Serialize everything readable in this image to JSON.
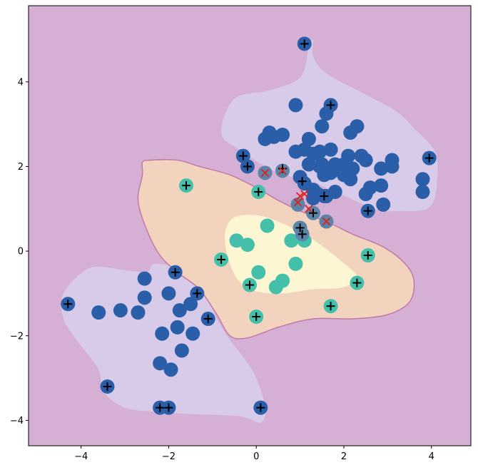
{
  "chart_data": {
    "type": "scatter",
    "title": "",
    "xlabel": "",
    "ylabel": "",
    "xlim": [
      -5.2,
      4.9
    ],
    "ylim": [
      -4.6,
      5.8
    ],
    "grid": false,
    "xticks": [
      -4,
      -2,
      0,
      2,
      4
    ],
    "yticks": [
      -4,
      -2,
      0,
      2,
      4
    ],
    "xtick_labels": [
      "−4",
      "−2",
      "0",
      "2",
      "4"
    ],
    "ytick_labels": [
      "−4",
      "−2",
      "0",
      "2",
      "4"
    ],
    "colors": {
      "background_region": "#d5b0d4",
      "region_level_1": "#d8cbe9",
      "region_level_2": "#f2d3be",
      "region_level_3": "#fdf6d2",
      "region_edge": "#c07aa6",
      "class_0_points": "#2a5ea8",
      "class_1_points": "#44c0aa",
      "misclassified_points": "#5a85a8",
      "support_marker": "#000000",
      "error_marker": "#e0201c"
    },
    "decision_regions": [
      {
        "level": 1,
        "polygon": [
          [
            -0.8,
            2.8
          ],
          [
            -0.5,
            3.6
          ],
          [
            0.3,
            3.8
          ],
          [
            1,
            4.1
          ],
          [
            1.2,
            4.8
          ],
          [
            1.3,
            5.0
          ],
          [
            1.3,
            4.6
          ],
          [
            1.6,
            4.2
          ],
          [
            2.5,
            3.7
          ],
          [
            3.2,
            3.3
          ],
          [
            3.6,
            2.9
          ],
          [
            4.1,
            2.3
          ],
          [
            4.1,
            1.4
          ],
          [
            3.9,
            1.0
          ],
          [
            3.3,
            0.95
          ],
          [
            2.7,
            1.0
          ],
          [
            1.6,
            1.5
          ],
          [
            1.0,
            1.7
          ],
          [
            0.4,
            1.9
          ],
          [
            -0.4,
            2.4
          ]
        ]
      },
      {
        "level": 1,
        "polygon": [
          [
            -4.4,
            -1.0
          ],
          [
            -3.8,
            -0.4
          ],
          [
            -3.0,
            -0.45
          ],
          [
            -2.5,
            -0.5
          ],
          [
            -2.3,
            -0.3
          ],
          [
            -1.6,
            -0.5
          ],
          [
            -1.1,
            -1.2
          ],
          [
            -0.9,
            -1.6
          ],
          [
            -0.6,
            -2.1
          ],
          [
            -0.3,
            -2.5
          ],
          [
            0.0,
            -3.0
          ],
          [
            0.2,
            -3.7
          ],
          [
            0.1,
            -4.05
          ],
          [
            -0.4,
            -3.9
          ],
          [
            -1.5,
            -3.85
          ],
          [
            -2.2,
            -3.8
          ],
          [
            -3.0,
            -3.7
          ],
          [
            -3.5,
            -3.3
          ],
          [
            -3.6,
            -2.8
          ],
          [
            -4.1,
            -2.1
          ],
          [
            -4.4,
            -1.6
          ]
        ]
      },
      {
        "level": 2,
        "polygon": [
          [
            -2.6,
            2.1
          ],
          [
            -2.4,
            2.15
          ],
          [
            -1.8,
            2.15
          ],
          [
            -1.3,
            2.0
          ],
          [
            -0.6,
            1.8
          ],
          [
            0.0,
            1.5
          ],
          [
            0.5,
            1.2
          ],
          [
            1.0,
            0.95
          ],
          [
            1.7,
            0.65
          ],
          [
            2.2,
            0.4
          ],
          [
            2.9,
            0.1
          ],
          [
            3.4,
            -0.3
          ],
          [
            3.6,
            -0.7
          ],
          [
            3.5,
            -1.2
          ],
          [
            3.0,
            -1.5
          ],
          [
            2.2,
            -1.6
          ],
          [
            1.3,
            -1.6
          ],
          [
            0.5,
            -1.8
          ],
          [
            -0.2,
            -2.05
          ],
          [
            -0.6,
            -2.0
          ],
          [
            -0.9,
            -1.5
          ],
          [
            -1.3,
            -0.9
          ],
          [
            -1.8,
            -0.5
          ],
          [
            -2.2,
            -0.1
          ],
          [
            -2.5,
            0.5
          ],
          [
            -2.7,
            1.2
          ],
          [
            -2.6,
            1.8
          ]
        ]
      },
      {
        "level": 3,
        "polygon": [
          [
            -0.7,
            0.5
          ],
          [
            -0.5,
            0.8
          ],
          [
            0.0,
            0.85
          ],
          [
            0.5,
            0.7
          ],
          [
            1.0,
            0.45
          ],
          [
            1.4,
            0.2
          ],
          [
            1.9,
            -0.2
          ],
          [
            2.3,
            -0.6
          ],
          [
            2.0,
            -0.85
          ],
          [
            1.3,
            -0.9
          ],
          [
            0.6,
            -1.0
          ],
          [
            0.0,
            -0.95
          ],
          [
            -0.4,
            -0.7
          ],
          [
            -0.6,
            -0.3
          ],
          [
            -0.7,
            0.1
          ]
        ]
      }
    ],
    "series": [
      {
        "class": 0,
        "points": [
          [
            1.1,
            4.9
          ],
          [
            0.9,
            3.45
          ],
          [
            1.7,
            3.45
          ],
          [
            1.6,
            3.25
          ],
          [
            1.5,
            2.95
          ],
          [
            2.3,
            2.95
          ],
          [
            0.3,
            2.8
          ],
          [
            0.4,
            2.7
          ],
          [
            0.6,
            2.75
          ],
          [
            0.2,
            2.65
          ],
          [
            1.2,
            2.65
          ],
          [
            2.15,
            2.8
          ],
          [
            -0.3,
            2.25
          ],
          [
            0.9,
            2.35
          ],
          [
            1.1,
            2.4
          ],
          [
            1.3,
            2.3
          ],
          [
            1.45,
            2.35
          ],
          [
            1.7,
            2.4
          ],
          [
            2.1,
            2.25
          ],
          [
            2.4,
            2.25
          ],
          [
            2.5,
            2.15
          ],
          [
            3.1,
            2.15
          ],
          [
            3.95,
            2.2
          ],
          [
            1.2,
            2.05
          ],
          [
            1.5,
            2.05
          ],
          [
            1.8,
            2.05
          ],
          [
            2.0,
            2.05
          ],
          [
            -0.2,
            2.0
          ],
          [
            1.45,
            2.0
          ],
          [
            2.2,
            1.95
          ],
          [
            2.85,
            1.95
          ],
          [
            3.1,
            2.0
          ],
          [
            1.0,
            1.75
          ],
          [
            1.7,
            1.85
          ],
          [
            1.55,
            1.8
          ],
          [
            2.0,
            1.8
          ],
          [
            2.15,
            1.7
          ],
          [
            1.1,
            1.6
          ],
          [
            3.8,
            1.7
          ],
          [
            2.6,
            1.5
          ],
          [
            2.85,
            1.55
          ],
          [
            1.3,
            1.45
          ],
          [
            1.4,
            1.35
          ],
          [
            2.5,
            1.35
          ],
          [
            3.8,
            1.4
          ],
          [
            1.55,
            1.3
          ],
          [
            1.3,
            1.25
          ],
          [
            1.8,
            1.4
          ],
          [
            1.6,
            1.3
          ],
          [
            2.9,
            1.1
          ],
          [
            2.55,
            0.95
          ],
          [
            -4.3,
            -1.25
          ],
          [
            -3.6,
            -1.45
          ],
          [
            -3.1,
            -1.4
          ],
          [
            -2.7,
            -1.45
          ],
          [
            -2.55,
            -0.65
          ],
          [
            -2.55,
            -1.1
          ],
          [
            -2.0,
            -1.0
          ],
          [
            -1.85,
            -0.5
          ],
          [
            -1.75,
            -1.4
          ],
          [
            -1.5,
            -1.25
          ],
          [
            -1.35,
            -1.0
          ],
          [
            -1.1,
            -1.6
          ],
          [
            -1.8,
            -1.8
          ],
          [
            -2.15,
            -1.95
          ],
          [
            -1.45,
            -1.95
          ],
          [
            -1.7,
            -2.35
          ],
          [
            -2.2,
            -2.65
          ],
          [
            -1.95,
            -2.8
          ],
          [
            -3.4,
            -3.2
          ],
          [
            -2.2,
            -3.7
          ],
          [
            -2.0,
            -3.7
          ],
          [
            0.1,
            -3.7
          ]
        ]
      },
      {
        "class": 1,
        "points": [
          [
            -1.6,
            1.55
          ],
          [
            0.05,
            1.4
          ],
          [
            -0.45,
            0.25
          ],
          [
            -0.2,
            0.15
          ],
          [
            0.25,
            0.6
          ],
          [
            0.8,
            0.25
          ],
          [
            1.1,
            0.25
          ],
          [
            -0.8,
            -0.2
          ],
          [
            0.9,
            -0.3
          ],
          [
            0.05,
            -0.5
          ],
          [
            0.6,
            -0.7
          ],
          [
            0.45,
            -0.85
          ],
          [
            -0.15,
            -0.8
          ],
          [
            2.55,
            -0.1
          ],
          [
            2.3,
            -0.75
          ],
          [
            1.7,
            -1.3
          ],
          [
            0.0,
            -1.55
          ]
        ]
      },
      {
        "class": "misclassified",
        "points": [
          [
            0.2,
            1.85
          ],
          [
            0.6,
            1.9
          ],
          [
            0.95,
            1.1
          ],
          [
            1.3,
            0.9
          ],
          [
            1.0,
            0.55
          ],
          [
            1.05,
            0.4
          ],
          [
            1.6,
            0.7
          ]
        ]
      }
    ],
    "support_markers": [
      [
        1.1,
        4.9
      ],
      [
        1.7,
        3.45
      ],
      [
        -0.3,
        2.25
      ],
      [
        -0.2,
        2.0
      ],
      [
        0.6,
        1.95
      ],
      [
        1.05,
        1.65
      ],
      [
        3.95,
        2.2
      ],
      [
        1.55,
        1.3
      ],
      [
        2.55,
        0.95
      ],
      [
        1.3,
        0.9
      ],
      [
        1.0,
        0.55
      ],
      [
        1.05,
        0.4
      ],
      [
        -1.6,
        1.55
      ],
      [
        0.05,
        1.4
      ],
      [
        -0.8,
        -0.2
      ],
      [
        2.55,
        -0.1
      ],
      [
        2.3,
        -0.75
      ],
      [
        -0.15,
        -0.8
      ],
      [
        0.0,
        -1.55
      ],
      [
        1.7,
        -1.3
      ],
      [
        -4.3,
        -1.25
      ],
      [
        -1.85,
        -0.5
      ],
      [
        -1.35,
        -1.0
      ],
      [
        -1.1,
        -1.6
      ],
      [
        -3.4,
        -3.2
      ],
      [
        -2.2,
        -3.7
      ],
      [
        -2.0,
        -3.7
      ],
      [
        0.1,
        -3.7
      ]
    ],
    "error_markers": [
      [
        0.2,
        1.85
      ],
      [
        0.6,
        1.9
      ],
      [
        1.0,
        1.3
      ],
      [
        0.95,
        1.15
      ],
      [
        1.1,
        1.35
      ],
      [
        1.2,
        1.0
      ],
      [
        1.6,
        0.7
      ]
    ]
  }
}
